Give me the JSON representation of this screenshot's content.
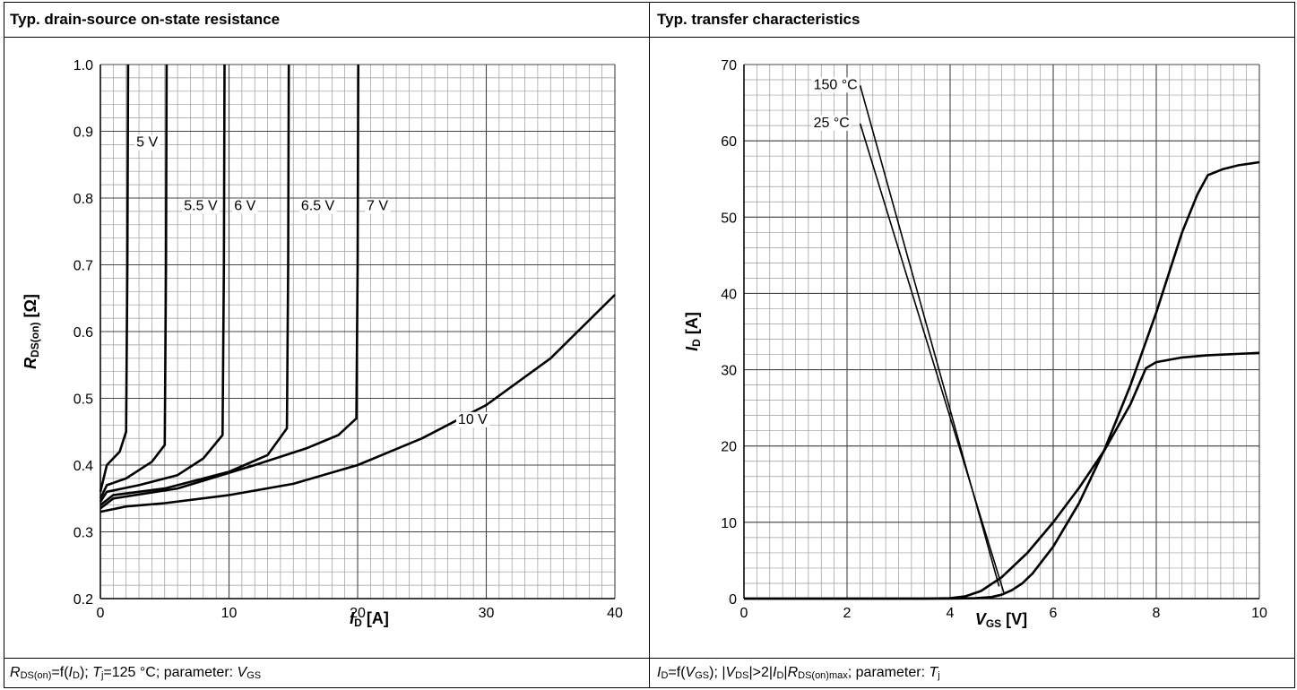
{
  "left_panel": {
    "title": "Typ. drain-source on-state resistance",
    "caption": {
      "r": "R",
      "r_sub": "DS(on)",
      "f": "=f(",
      "id": "I",
      "id_sub": "D",
      "mid": "); ",
      "tj": "T",
      "tj_sub": "j",
      "rest": "=125 °C; parameter: ",
      "v": "V",
      "v_sub": "GS"
    },
    "xlabel_var": "I",
    "xlabel_sub": "D",
    "xlabel_unit": " [A]",
    "ylabel_var": "R",
    "ylabel_sub": "DS(on)",
    "ylabel_unit": " [Ω]"
  },
  "right_panel": {
    "title": "Typ. transfer characteristics",
    "caption": {
      "id": "I",
      "id_sub": "D",
      "f": "=f(",
      "v": "V",
      "v_sub": "GS",
      "a": "); |",
      "vds": "V",
      "vds_sub": "DS",
      "b": "|>2|",
      "id2": "I",
      "id2_sub": "D",
      "c": "|",
      "r": "R",
      "r_sub": "DS(on)max",
      "d": "; parameter: ",
      "tj": "T",
      "tj_sub": "j"
    },
    "xlabel_var": "V",
    "xlabel_sub": "GS",
    "xlabel_unit": " [V]",
    "ylabel_var": "I",
    "ylabel_sub": "D",
    "ylabel_unit": " [A]"
  },
  "chart_data": [
    {
      "type": "line",
      "title": "Typ. drain-source on-state resistance",
      "xlabel": "I_D [A]",
      "ylabel": "R_DS(on) [Ω]",
      "xlim": [
        0,
        40
      ],
      "ylim": [
        0.2,
        1.0
      ],
      "xticks": [
        0,
        10,
        20,
        30,
        40
      ],
      "yticks": [
        0.2,
        0.3,
        0.4,
        0.5,
        0.6,
        0.7,
        0.8,
        0.9,
        1.0
      ],
      "x_minor": 1,
      "y_minor": 0.02,
      "grid": true,
      "series": [
        {
          "name": "5 V",
          "x": [
            0,
            0.5,
            1.5,
            2.0,
            2.1,
            2.15
          ],
          "y": [
            0.36,
            0.4,
            0.42,
            0.45,
            0.7,
            1.0
          ],
          "label_at": [
            2.8,
            0.885
          ]
        },
        {
          "name": "5.5 V",
          "x": [
            0,
            0.5,
            2,
            4,
            5.0,
            5.1,
            5.15
          ],
          "y": [
            0.35,
            0.37,
            0.38,
            0.405,
            0.43,
            0.7,
            1.0
          ],
          "label_at": [
            6.5,
            0.79
          ]
        },
        {
          "name": "6 V",
          "x": [
            0,
            0.5,
            3,
            6,
            8,
            9.5,
            9.6,
            9.65
          ],
          "y": [
            0.345,
            0.36,
            0.37,
            0.385,
            0.41,
            0.445,
            0.7,
            1.0
          ],
          "label_at": [
            10.4,
            0.79
          ]
        },
        {
          "name": "6.5 V",
          "x": [
            0,
            1,
            5,
            10,
            13,
            14.5,
            14.6,
            14.65
          ],
          "y": [
            0.34,
            0.355,
            0.365,
            0.39,
            0.415,
            0.455,
            0.7,
            1.0
          ],
          "label_at": [
            15.6,
            0.79
          ]
        },
        {
          "name": "7 V",
          "x": [
            0,
            1,
            6,
            12,
            16,
            18.5,
            19.9,
            20.0,
            20.05
          ],
          "y": [
            0.335,
            0.35,
            0.365,
            0.4,
            0.425,
            0.445,
            0.47,
            0.7,
            1.0
          ],
          "label_at": [
            20.7,
            0.79
          ]
        },
        {
          "name": "10 V",
          "x": [
            0,
            2,
            5,
            10,
            15,
            20,
            25,
            30,
            35,
            40
          ],
          "y": [
            0.33,
            0.338,
            0.343,
            0.355,
            0.372,
            0.4,
            0.44,
            0.49,
            0.56,
            0.655
          ],
          "label_at": [
            27.8,
            0.47
          ]
        }
      ]
    },
    {
      "type": "line",
      "title": "Typ. transfer characteristics",
      "xlabel": "V_GS [V]",
      "ylabel": "I_D [A]",
      "xlim": [
        0,
        10
      ],
      "ylim": [
        0,
        70
      ],
      "xticks": [
        0,
        2,
        4,
        6,
        8,
        10
      ],
      "yticks": [
        0,
        10,
        20,
        30,
        40,
        50,
        60,
        70
      ],
      "x_minor": 0.25,
      "y_minor": 2,
      "grid": true,
      "series": [
        {
          "name": "25 °C",
          "x": [
            0,
            4,
            4.5,
            4.8,
            5.0,
            5.2,
            5.4,
            5.6,
            6.0,
            6.5,
            7.0,
            7.5,
            8.0,
            8.5,
            8.8,
            9.0,
            9.3,
            9.6,
            10.0
          ],
          "y": [
            0,
            0,
            0.05,
            0.2,
            0.5,
            1.1,
            2.0,
            3.3,
            6.8,
            12.5,
            19.6,
            28.0,
            37.5,
            48.0,
            53.0,
            55.5,
            56.3,
            56.8,
            57.2
          ],
          "label_at": [
            1.35,
            62.5
          ]
        },
        {
          "name": "150 °C",
          "x": [
            0,
            3.5,
            4.0,
            4.3,
            4.6,
            5.0,
            5.5,
            6.0,
            6.5,
            7.0,
            7.5,
            7.8,
            8.0,
            8.5,
            9.0,
            10.0
          ],
          "y": [
            0,
            0,
            0.05,
            0.3,
            1.0,
            2.8,
            6.0,
            10.0,
            14.5,
            19.5,
            25.5,
            30.2,
            31.0,
            31.6,
            31.9,
            32.2
          ],
          "label_at": [
            1.35,
            67.5
          ]
        }
      ]
    }
  ]
}
